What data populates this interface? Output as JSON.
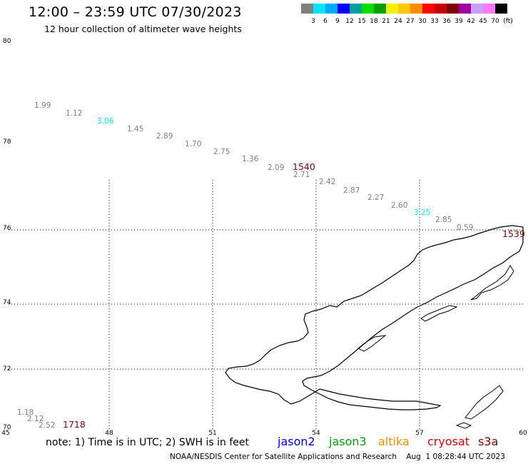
{
  "header": {
    "title": "12:00 – 23:59 UTC 07/30/2023",
    "subtitle": "12 hour collection of altimeter wave heights"
  },
  "color_scale": {
    "unit": "(ft)",
    "colors": [
      "#808080",
      "#00e5ff",
      "#00a8ff",
      "#0000ff",
      "#00a0a0",
      "#00e000",
      "#00a000",
      "#f0f000",
      "#ffc800",
      "#ff8c00",
      "#ff0000",
      "#c80000",
      "#800000",
      "#a000a0",
      "#c8a0ff",
      "#ff78ff",
      "#000000"
    ],
    "labels": [
      "3",
      "6",
      "9",
      "12",
      "15",
      "18",
      "21",
      "24",
      "27",
      "30",
      "33",
      "36",
      "39",
      "42",
      "45",
      "70"
    ]
  },
  "axes": {
    "lat_labels": [
      "80",
      "78",
      "76",
      "74",
      "72",
      "70"
    ],
    "lon_labels": [
      "45",
      "48",
      "51",
      "54",
      "57",
      "60"
    ]
  },
  "track_values": [
    {
      "text": "1.99",
      "color": "#808080"
    },
    {
      "text": "1.12",
      "color": "#808080"
    },
    {
      "text": "3.06",
      "color": "#00e5ff"
    },
    {
      "text": "1.45",
      "color": "#808080"
    },
    {
      "text": "2.89",
      "color": "#808080"
    },
    {
      "text": "1.70",
      "color": "#808080"
    },
    {
      "text": "2.75",
      "color": "#808080"
    },
    {
      "text": "1.36",
      "color": "#808080"
    },
    {
      "text": "2.09",
      "color": "#808080"
    },
    {
      "text": "2.71",
      "color": "#808080"
    },
    {
      "text": "2.42",
      "color": "#808080"
    },
    {
      "text": "2.87",
      "color": "#808080"
    },
    {
      "text": "2.27",
      "color": "#808080"
    },
    {
      "text": "2.60",
      "color": "#808080"
    },
    {
      "text": "3.25",
      "color": "#00e5ff"
    },
    {
      "text": "2.85",
      "color": "#808080"
    },
    {
      "text": "0.59",
      "color": "#808080"
    },
    {
      "text": "1.18",
      "color": "#808080"
    },
    {
      "text": "2.12",
      "color": "#808080"
    },
    {
      "text": "2.52",
      "color": "#808080"
    }
  ],
  "time_labels": [
    "1540",
    "1539",
    "1718"
  ],
  "note": {
    "text": "note:  1) Time is in UTC; 2) SWH is in feet",
    "missions": [
      {
        "name": "jason2",
        "color": "#0000ff"
      },
      {
        "name": "jason3",
        "color": "#00a000"
      },
      {
        "name": "altika",
        "color": "#ff8c00"
      },
      {
        "name": "cryosat",
        "color": "#e00000"
      },
      {
        "name": "s3a",
        "color": "#800000"
      }
    ]
  },
  "footer": "NOAA/NESDIS Center for Satellite Applications and Research    Aug  1 08:28:44 UTC 2023"
}
